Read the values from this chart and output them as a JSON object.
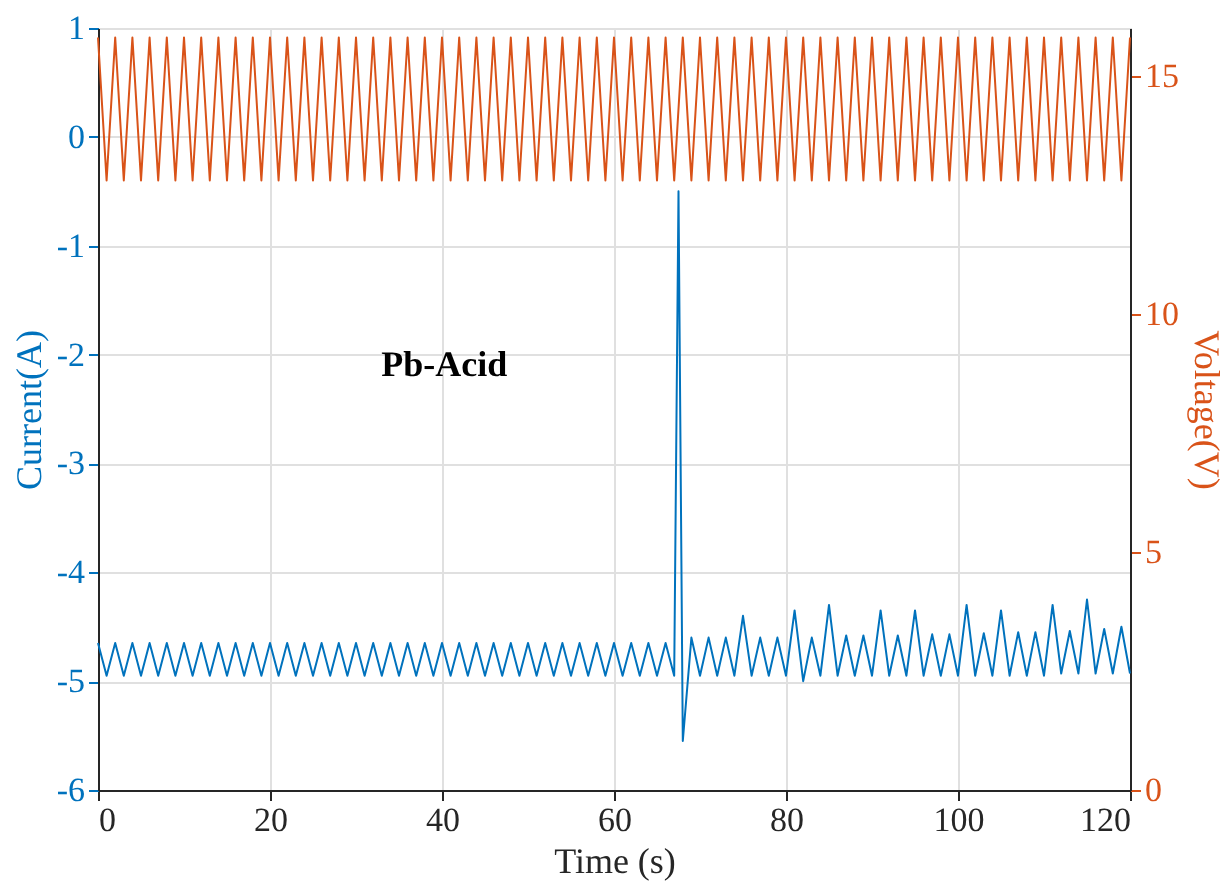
{
  "chart_data": {
    "type": "line",
    "xlabel": "Time (s)",
    "ylabel": "Current(A)",
    "y2label": "Voltage(V)",
    "xlim": [
      0,
      120
    ],
    "xticks": [
      0,
      20,
      40,
      60,
      80,
      100,
      120
    ],
    "ylim": [
      -6,
      1
    ],
    "yticks": [
      -6,
      -5,
      -4,
      -3,
      -2,
      -1,
      0,
      1
    ],
    "y2lim": [
      0,
      16
    ],
    "y2ticks": [
      0,
      5,
      10,
      15
    ],
    "grid": true,
    "marker": "none",
    "line_style": "solid",
    "annotations": [
      "Pb-Acid"
    ],
    "series": [
      {
        "color": "#d95319",
        "axis": "y2",
        "x": [
          0,
          1,
          2,
          3,
          4,
          5,
          6,
          7,
          8,
          9,
          10,
          11,
          12,
          13,
          14,
          15,
          16,
          17,
          18,
          19,
          20,
          21,
          22,
          23,
          24,
          25,
          26,
          27,
          28,
          29,
          30,
          31,
          32,
          33,
          34,
          35,
          36,
          37,
          38,
          39,
          40,
          41,
          42,
          43,
          44,
          45,
          46,
          47,
          48,
          49,
          50,
          51,
          52,
          53,
          54,
          55,
          56,
          57,
          58,
          59,
          60,
          61,
          62,
          63,
          64,
          65,
          66,
          67,
          68,
          69,
          70,
          71,
          72,
          73,
          74,
          75,
          76,
          77,
          78,
          79,
          80,
          81,
          82,
          83,
          84,
          85,
          86,
          87,
          88,
          89,
          90,
          91,
          92,
          93,
          94,
          95,
          96,
          97,
          98,
          99,
          100,
          101,
          102,
          103,
          104,
          105,
          106,
          107,
          108,
          109,
          110,
          111,
          112,
          113,
          114,
          115,
          116,
          117,
          118,
          119,
          120
        ],
        "values": [
          15.8,
          12.8,
          15.8,
          12.8,
          15.8,
          12.8,
          15.8,
          12.8,
          15.8,
          12.8,
          15.8,
          12.8,
          15.8,
          12.8,
          15.8,
          12.8,
          15.8,
          12.8,
          15.8,
          12.8,
          15.8,
          12.8,
          15.8,
          12.8,
          15.8,
          12.8,
          15.8,
          12.8,
          15.8,
          12.8,
          15.8,
          12.8,
          15.8,
          12.8,
          15.8,
          12.8,
          15.8,
          12.8,
          15.8,
          12.8,
          15.8,
          12.8,
          15.8,
          12.8,
          15.8,
          12.8,
          15.8,
          12.8,
          15.8,
          12.8,
          15.8,
          12.8,
          15.8,
          12.8,
          15.8,
          12.8,
          15.8,
          12.8,
          15.8,
          12.8,
          15.8,
          12.8,
          15.8,
          12.8,
          15.8,
          12.8,
          15.8,
          12.8,
          15.8,
          12.8,
          15.8,
          12.8,
          15.8,
          12.8,
          15.8,
          12.8,
          15.8,
          12.8,
          15.8,
          12.8,
          15.8,
          12.8,
          15.8,
          12.8,
          15.8,
          12.8,
          15.8,
          12.8,
          15.8,
          12.8,
          15.8,
          12.8,
          15.8,
          12.8,
          15.8,
          12.8,
          15.8,
          12.8,
          15.8,
          12.8,
          15.8,
          12.8,
          15.8,
          12.8,
          15.8,
          12.8,
          15.8,
          12.8,
          15.8,
          12.8,
          15.8,
          12.8,
          15.8,
          12.8,
          15.8,
          12.8,
          15.8,
          12.8,
          15.8,
          12.8,
          15.8
        ]
      },
      {
        "color": "#0072bd",
        "x": [
          0,
          1,
          2,
          3,
          4,
          5,
          6,
          7,
          8,
          9,
          10,
          11,
          12,
          13,
          14,
          15,
          16,
          17,
          18,
          19,
          20,
          21,
          22,
          23,
          24,
          25,
          26,
          27,
          28,
          29,
          30,
          31,
          32,
          33,
          34,
          35,
          36,
          37,
          38,
          39,
          40,
          41,
          42,
          43,
          44,
          45,
          46,
          47,
          48,
          49,
          50,
          51,
          52,
          53,
          54,
          55,
          56,
          57,
          58,
          59,
          60,
          61,
          62,
          63,
          64,
          65,
          66,
          67,
          67.5,
          68,
          69,
          70,
          71,
          72,
          73,
          74,
          75,
          76,
          77,
          78,
          79,
          80,
          81,
          82,
          83,
          84,
          85,
          86,
          87,
          88,
          89,
          90,
          91,
          92,
          93,
          94,
          95,
          96,
          97,
          98,
          99,
          100,
          101,
          102,
          103,
          104,
          105,
          106,
          107,
          108,
          109,
          110,
          111,
          112,
          113,
          114,
          115,
          116,
          117,
          118,
          119,
          120
        ],
        "values": [
          -4.65,
          -4.95,
          -4.65,
          -4.95,
          -4.65,
          -4.95,
          -4.65,
          -4.95,
          -4.65,
          -4.95,
          -4.65,
          -4.95,
          -4.65,
          -4.95,
          -4.65,
          -4.95,
          -4.65,
          -4.95,
          -4.65,
          -4.95,
          -4.65,
          -4.95,
          -4.65,
          -4.95,
          -4.65,
          -4.95,
          -4.65,
          -4.95,
          -4.65,
          -4.95,
          -4.65,
          -4.95,
          -4.65,
          -4.95,
          -4.65,
          -4.95,
          -4.65,
          -4.95,
          -4.65,
          -4.95,
          -4.65,
          -4.95,
          -4.65,
          -4.95,
          -4.65,
          -4.95,
          -4.65,
          -4.95,
          -4.65,
          -4.95,
          -4.65,
          -4.95,
          -4.65,
          -4.95,
          -4.65,
          -4.95,
          -4.65,
          -4.95,
          -4.65,
          -4.95,
          -4.65,
          -4.95,
          -4.65,
          -4.95,
          -4.65,
          -4.95,
          -4.65,
          -4.95,
          -0.5,
          -5.55,
          -4.6,
          -4.95,
          -4.6,
          -4.95,
          -4.6,
          -4.95,
          -4.4,
          -4.95,
          -4.6,
          -4.95,
          -4.6,
          -4.95,
          -4.35,
          -5.0,
          -4.6,
          -4.95,
          -4.3,
          -4.95,
          -4.58,
          -4.95,
          -4.58,
          -4.95,
          -4.35,
          -4.95,
          -4.58,
          -4.95,
          -4.35,
          -4.95,
          -4.57,
          -4.95,
          -4.57,
          -4.95,
          -4.3,
          -4.95,
          -4.56,
          -4.95,
          -4.35,
          -4.95,
          -4.55,
          -4.95,
          -4.55,
          -4.95,
          -4.3,
          -4.93,
          -4.54,
          -4.93,
          -4.25,
          -4.93,
          -4.52,
          -4.93,
          -4.5,
          -4.93
        ]
      }
    ]
  }
}
